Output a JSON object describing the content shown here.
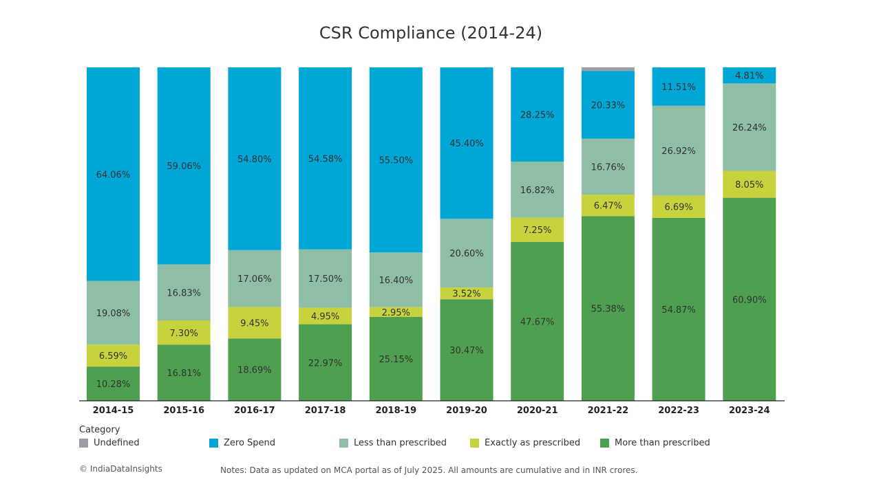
{
  "chart_data": {
    "type": "bar",
    "stacked": true,
    "title": "CSR Compliance (2014-24)",
    "xlabel": "",
    "ylabel": "",
    "ylim": [
      0,
      100
    ],
    "grid": false,
    "legend_placement": "bottom",
    "legend_title": "Category",
    "categories": [
      "2014-15",
      "2015-16",
      "2016-17",
      "2017-18",
      "2018-19",
      "2019-20",
      "2020-21",
      "2021-22",
      "2022-23",
      "2023-24"
    ],
    "series": [
      {
        "name": "More than prescribed",
        "color": "#4e9f50",
        "values": [
          10.28,
          16.81,
          18.69,
          22.97,
          25.15,
          30.47,
          47.67,
          55.38,
          54.87,
          60.9
        ],
        "labels": [
          "10.28%",
          "16.81%",
          "18.69%",
          "22.97%",
          "25.15%",
          "30.47%",
          "47.67%",
          "55.38%",
          "54.87%",
          "60.90%"
        ]
      },
      {
        "name": "Exactly as prescribed",
        "color": "#c7d23d",
        "values": [
          6.59,
          7.3,
          9.45,
          4.95,
          2.95,
          3.52,
          7.25,
          6.47,
          6.69,
          8.05
        ],
        "labels": [
          "6.59%",
          "7.30%",
          "9.45%",
          "4.95%",
          "2.95%",
          "3.52%",
          "7.25%",
          "6.47%",
          "6.69%",
          "8.05%"
        ]
      },
      {
        "name": "Less than prescribed",
        "color": "#8ebea6",
        "values": [
          19.08,
          16.83,
          17.06,
          17.5,
          16.4,
          20.6,
          16.82,
          16.76,
          26.92,
          26.24
        ],
        "labels": [
          "19.08%",
          "16.83%",
          "17.06%",
          "17.50%",
          "16.40%",
          "20.60%",
          "16.82%",
          "16.76%",
          "26.92%",
          "26.24%"
        ]
      },
      {
        "name": "Zero Spend",
        "color": "#00a6d6",
        "values": [
          64.06,
          59.06,
          54.8,
          54.58,
          55.5,
          45.4,
          28.25,
          20.33,
          11.51,
          4.81
        ],
        "labels": [
          "64.06%",
          "59.06%",
          "54.80%",
          "54.58%",
          "55.50%",
          "45.40%",
          "28.25%",
          "20.33%",
          "11.51%",
          "4.81%"
        ]
      },
      {
        "name": "Undefined",
        "color": "#9b9ea6",
        "values": [
          0,
          0,
          0,
          0,
          0,
          0,
          0,
          1.06,
          0,
          0
        ],
        "labels": [
          "",
          "",
          "",
          "",
          "",
          "",
          "",
          "",
          "",
          ""
        ]
      }
    ]
  },
  "legend": {
    "title": "Category",
    "items": [
      {
        "label": "Undefined",
        "color": "#9b9ea6"
      },
      {
        "label": "Zero Spend",
        "color": "#00a6d6"
      },
      {
        "label": "Less than prescribed",
        "color": "#8ebea6"
      },
      {
        "label": "Exactly as prescribed",
        "color": "#c7d23d"
      },
      {
        "label": "More than prescribed",
        "color": "#4e9f50"
      }
    ]
  },
  "footer": {
    "copyright": "© IndiaDataInsights",
    "notes": "Notes: Data as updated on MCA portal as of July 2025.  All amounts are cumulative and in INR crores."
  }
}
